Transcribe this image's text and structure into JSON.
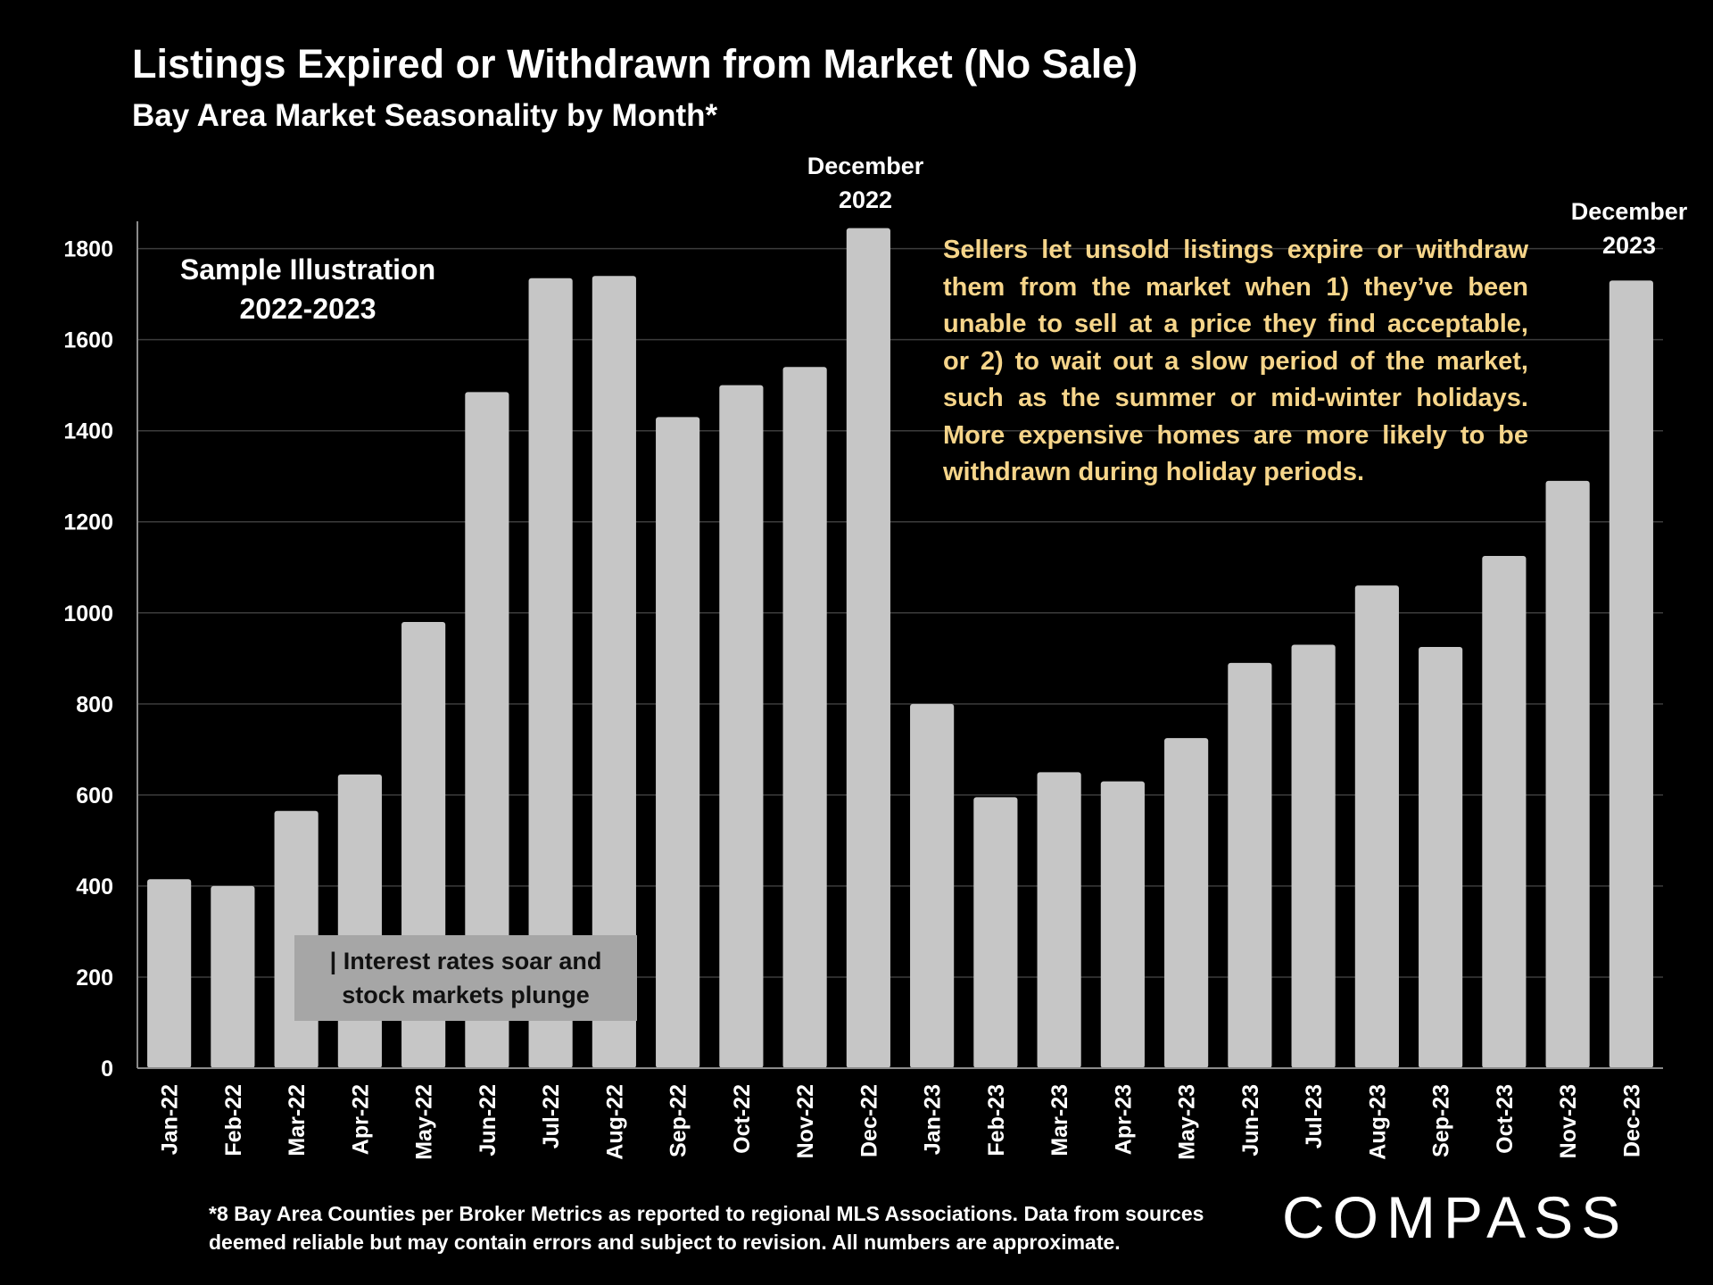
{
  "title": "Listings Expired or Withdrawn from Market (No Sale)",
  "subtitle": "Bay Area Market Seasonality by Month*",
  "sample_label": [
    "Sample Illustration",
    "2022-2023"
  ],
  "note": [
    "Sellers let unsold listings expire or withdraw",
    "them from the market when 1) they’ve been",
    "unable to sell at a price they find acceptable,",
    "or 2) to wait out a slow period of the market,",
    "such as the summer or mid-winter holidays.",
    "More expensive homes are more likely to be",
    "withdrawn during holiday periods."
  ],
  "callout": [
    "| Interest rates soar and",
    "stock markets plunge"
  ],
  "peak_2022": [
    "December",
    "2022"
  ],
  "peak_2023": [
    "December",
    "2023"
  ],
  "footnote": [
    "*8 Bay Area Counties per Broker Metrics as reported to regional MLS Associations.  Data from sources",
    "deemed reliable but may contain errors and subject to revision. All numbers are approximate."
  ],
  "logo": "COMPASS",
  "colors": {
    "background": "#000000",
    "bar": "#c6c6c6",
    "note_text": "#f6d58a",
    "callout_bg": "#a6a6a6",
    "grid": "#3c3c3c"
  },
  "chart_data": {
    "type": "bar",
    "title": "Listings Expired or Withdrawn from Market (No Sale)",
    "subtitle": "Bay Area Market Seasonality by Month*",
    "categories": [
      "Jan-22",
      "Feb-22",
      "Mar-22",
      "Apr-22",
      "May-22",
      "Jun-22",
      "Jul-22",
      "Aug-22",
      "Sep-22",
      "Oct-22",
      "Nov-22",
      "Dec-22",
      "Jan-23",
      "Feb-23",
      "Mar-23",
      "Apr-23",
      "May-23",
      "Jun-23",
      "Jul-23",
      "Aug-23",
      "Sep-23",
      "Oct-23",
      "Nov-23",
      "Dec-23"
    ],
    "values": [
      415,
      400,
      565,
      645,
      980,
      1485,
      1735,
      1740,
      1430,
      1500,
      1540,
      1845,
      800,
      595,
      650,
      630,
      725,
      890,
      930,
      1060,
      925,
      1125,
      1290,
      1730
    ],
    "yticks": [
      0,
      200,
      400,
      600,
      800,
      1000,
      1200,
      1400,
      1600,
      1800
    ],
    "ylim": [
      0,
      1860
    ],
    "xlabel": "",
    "ylabel": "",
    "grid": true,
    "legend": "none"
  }
}
